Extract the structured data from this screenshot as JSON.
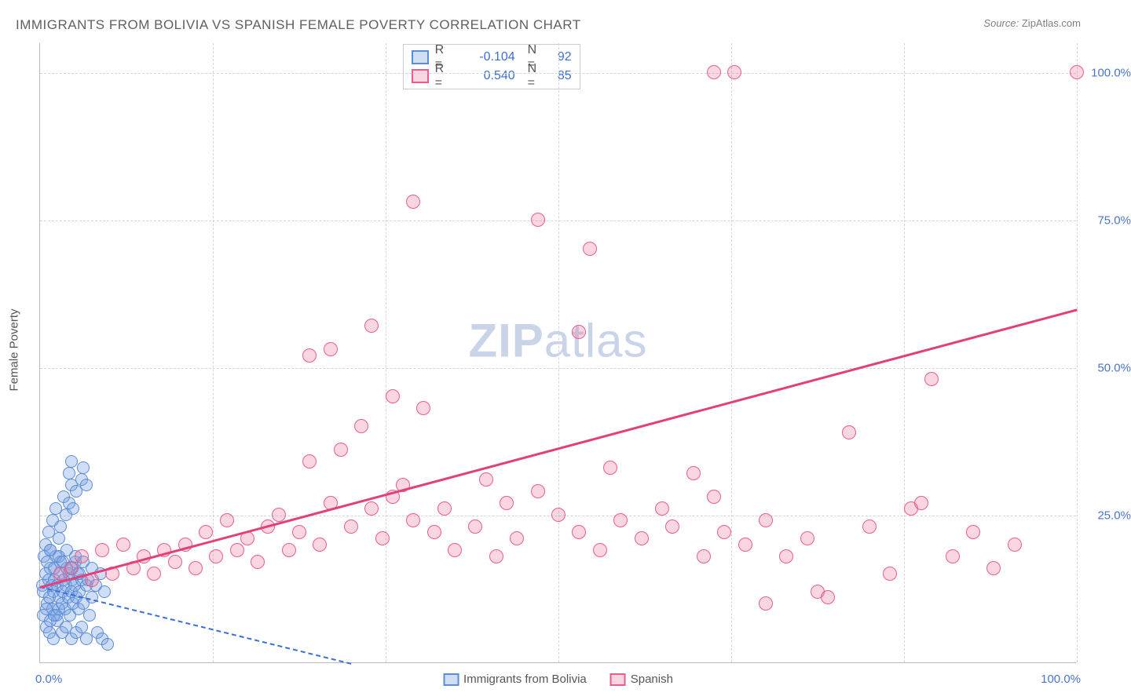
{
  "title": "IMMIGRANTS FROM BOLIVIA VS SPANISH FEMALE POVERTY CORRELATION CHART",
  "source_label": "Source:",
  "source_value": "ZipAtlas.com",
  "watermark": "ZIPatlas",
  "ylabel": "Female Poverty",
  "x_range": [
    0,
    100
  ],
  "y_range": [
    0,
    105
  ],
  "yticks": [
    {
      "v": 25,
      "label": "25.0%"
    },
    {
      "v": 50,
      "label": "50.0%"
    },
    {
      "v": 75,
      "label": "75.0%"
    },
    {
      "v": 100,
      "label": "100.0%"
    }
  ],
  "xtick_vgrid": [
    16.67,
    33.33,
    50,
    66.67,
    83.33,
    100
  ],
  "xtick_left": "0.0%",
  "xtick_right": "100.0%",
  "series": [
    {
      "name": "Immigrants from Bolivia",
      "color_fill": "rgba(120,160,225,0.35)",
      "color_stroke": "#5a8cd8",
      "marker_radius": 8,
      "R": "-0.104",
      "N": "92",
      "trend": {
        "x1": 0,
        "y1": 13,
        "x2": 30,
        "y2": 0,
        "color": "#3b6fd6",
        "width": 2,
        "dash": true
      },
      "points": [
        [
          0.2,
          13
        ],
        [
          0.3,
          12
        ],
        [
          0.5,
          15
        ],
        [
          0.7,
          10
        ],
        [
          0.8,
          14
        ],
        [
          0.9,
          11
        ],
        [
          1.0,
          16
        ],
        [
          1.1,
          13
        ],
        [
          1.2,
          9
        ],
        [
          1.3,
          12
        ],
        [
          1.4,
          14
        ],
        [
          1.5,
          18
        ],
        [
          1.6,
          8
        ],
        [
          1.7,
          13
        ],
        [
          1.8,
          11
        ],
        [
          1.9,
          15
        ],
        [
          2.0,
          17
        ],
        [
          2.1,
          10
        ],
        [
          2.2,
          12
        ],
        [
          2.3,
          14
        ],
        [
          2.4,
          9
        ],
        [
          2.5,
          13
        ],
        [
          2.6,
          16
        ],
        [
          2.7,
          11
        ],
        [
          2.8,
          15
        ],
        [
          2.9,
          8
        ],
        [
          3.0,
          12
        ],
        [
          3.1,
          14
        ],
        [
          3.2,
          10
        ],
        [
          3.3,
          13
        ],
        [
          3.4,
          17
        ],
        [
          3.5,
          11
        ],
        [
          3.6,
          15
        ],
        [
          3.7,
          9
        ],
        [
          3.8,
          12
        ],
        [
          4.0,
          14
        ],
        [
          4.2,
          10
        ],
        [
          4.5,
          13
        ],
        [
          4.8,
          8
        ],
        [
          5.0,
          11
        ],
        [
          0.5,
          20
        ],
        [
          0.8,
          22
        ],
        [
          1.0,
          19
        ],
        [
          1.2,
          24
        ],
        [
          1.5,
          26
        ],
        [
          1.8,
          21
        ],
        [
          2.0,
          23
        ],
        [
          2.3,
          28
        ],
        [
          2.5,
          25
        ],
        [
          2.8,
          27
        ],
        [
          3.0,
          30
        ],
        [
          3.2,
          26
        ],
        [
          3.5,
          29
        ],
        [
          0.6,
          6
        ],
        [
          0.9,
          5
        ],
        [
          1.3,
          4
        ],
        [
          1.7,
          7
        ],
        [
          2.1,
          5
        ],
        [
          2.5,
          6
        ],
        [
          3.0,
          4
        ],
        [
          3.5,
          5
        ],
        [
          4.0,
          6
        ],
        [
          4.5,
          4
        ],
        [
          5.5,
          5
        ],
        [
          6.0,
          4
        ],
        [
          6.5,
          3
        ],
        [
          2.8,
          32
        ],
        [
          3.0,
          34
        ],
        [
          4.0,
          31
        ],
        [
          4.2,
          33
        ],
        [
          4.5,
          30
        ],
        [
          0.4,
          18
        ],
        [
          0.7,
          17
        ],
        [
          1.0,
          19
        ],
        [
          1.4,
          16
        ],
        [
          1.8,
          18
        ],
        [
          2.2,
          17
        ],
        [
          2.6,
          19
        ],
        [
          3.0,
          16
        ],
        [
          3.4,
          18
        ],
        [
          3.8,
          15
        ],
        [
          4.2,
          17
        ],
        [
          4.6,
          14
        ],
        [
          5.0,
          16
        ],
        [
          5.4,
          13
        ],
        [
          5.8,
          15
        ],
        [
          6.2,
          12
        ],
        [
          0.3,
          8
        ],
        [
          0.6,
          9
        ],
        [
          1.0,
          7
        ],
        [
          1.4,
          8
        ],
        [
          1.8,
          9
        ]
      ]
    },
    {
      "name": "Spanish",
      "color_fill": "rgba(235,120,160,0.30)",
      "color_stroke": "#e85d8f",
      "marker_radius": 9,
      "R": "0.540",
      "N": "85",
      "trend": {
        "x1": 0,
        "y1": 13,
        "x2": 100,
        "y2": 60,
        "color": "#e34079",
        "width": 3,
        "dash": false
      },
      "points": [
        [
          2,
          15
        ],
        [
          3,
          16
        ],
        [
          4,
          18
        ],
        [
          5,
          14
        ],
        [
          6,
          19
        ],
        [
          7,
          15
        ],
        [
          8,
          20
        ],
        [
          9,
          16
        ],
        [
          10,
          18
        ],
        [
          11,
          15
        ],
        [
          12,
          19
        ],
        [
          13,
          17
        ],
        [
          14,
          20
        ],
        [
          15,
          16
        ],
        [
          16,
          22
        ],
        [
          17,
          18
        ],
        [
          18,
          24
        ],
        [
          19,
          19
        ],
        [
          20,
          21
        ],
        [
          21,
          17
        ],
        [
          22,
          23
        ],
        [
          23,
          25
        ],
        [
          24,
          19
        ],
        [
          25,
          22
        ],
        [
          26,
          34
        ],
        [
          27,
          20
        ],
        [
          28,
          27
        ],
        [
          29,
          36
        ],
        [
          30,
          23
        ],
        [
          31,
          40
        ],
        [
          32,
          26
        ],
        [
          33,
          21
        ],
        [
          34,
          28
        ],
        [
          35,
          30
        ],
        [
          36,
          24
        ],
        [
          37,
          43
        ],
        [
          38,
          22
        ],
        [
          36,
          78
        ],
        [
          39,
          26
        ],
        [
          40,
          19
        ],
        [
          42,
          23
        ],
        [
          43,
          31
        ],
        [
          44,
          18
        ],
        [
          45,
          27
        ],
        [
          46,
          21
        ],
        [
          48,
          75
        ],
        [
          48,
          29
        ],
        [
          50,
          25
        ],
        [
          52,
          56
        ],
        [
          52,
          22
        ],
        [
          53,
          70
        ],
        [
          54,
          19
        ],
        [
          55,
          33
        ],
        [
          56,
          24
        ],
        [
          58,
          21
        ],
        [
          60,
          26
        ],
        [
          61,
          23
        ],
        [
          63,
          32
        ],
        [
          64,
          18
        ],
        [
          65,
          28
        ],
        [
          66,
          22
        ],
        [
          68,
          20
        ],
        [
          70,
          10
        ],
        [
          70,
          24
        ],
        [
          72,
          18
        ],
        [
          74,
          21
        ],
        [
          75,
          12
        ],
        [
          76,
          11
        ],
        [
          78,
          39
        ],
        [
          80,
          23
        ],
        [
          82,
          15
        ],
        [
          84,
          26
        ],
        [
          65,
          100
        ],
        [
          67,
          100
        ],
        [
          86,
          48
        ],
        [
          88,
          18
        ],
        [
          90,
          22
        ],
        [
          92,
          16
        ],
        [
          94,
          20
        ],
        [
          85,
          27
        ],
        [
          28,
          53
        ],
        [
          32,
          57
        ],
        [
          26,
          52
        ],
        [
          100,
          100
        ],
        [
          34,
          45
        ]
      ]
    }
  ],
  "legend_swatches": [
    {
      "fill": "rgba(120,160,225,0.35)",
      "stroke": "#5a8cd8"
    },
    {
      "fill": "rgba(235,120,160,0.30)",
      "stroke": "#e85d8f"
    }
  ],
  "colors": {
    "axis_label": "#4a74c9",
    "grid": "#d5d5d5",
    "background": "#ffffff"
  }
}
